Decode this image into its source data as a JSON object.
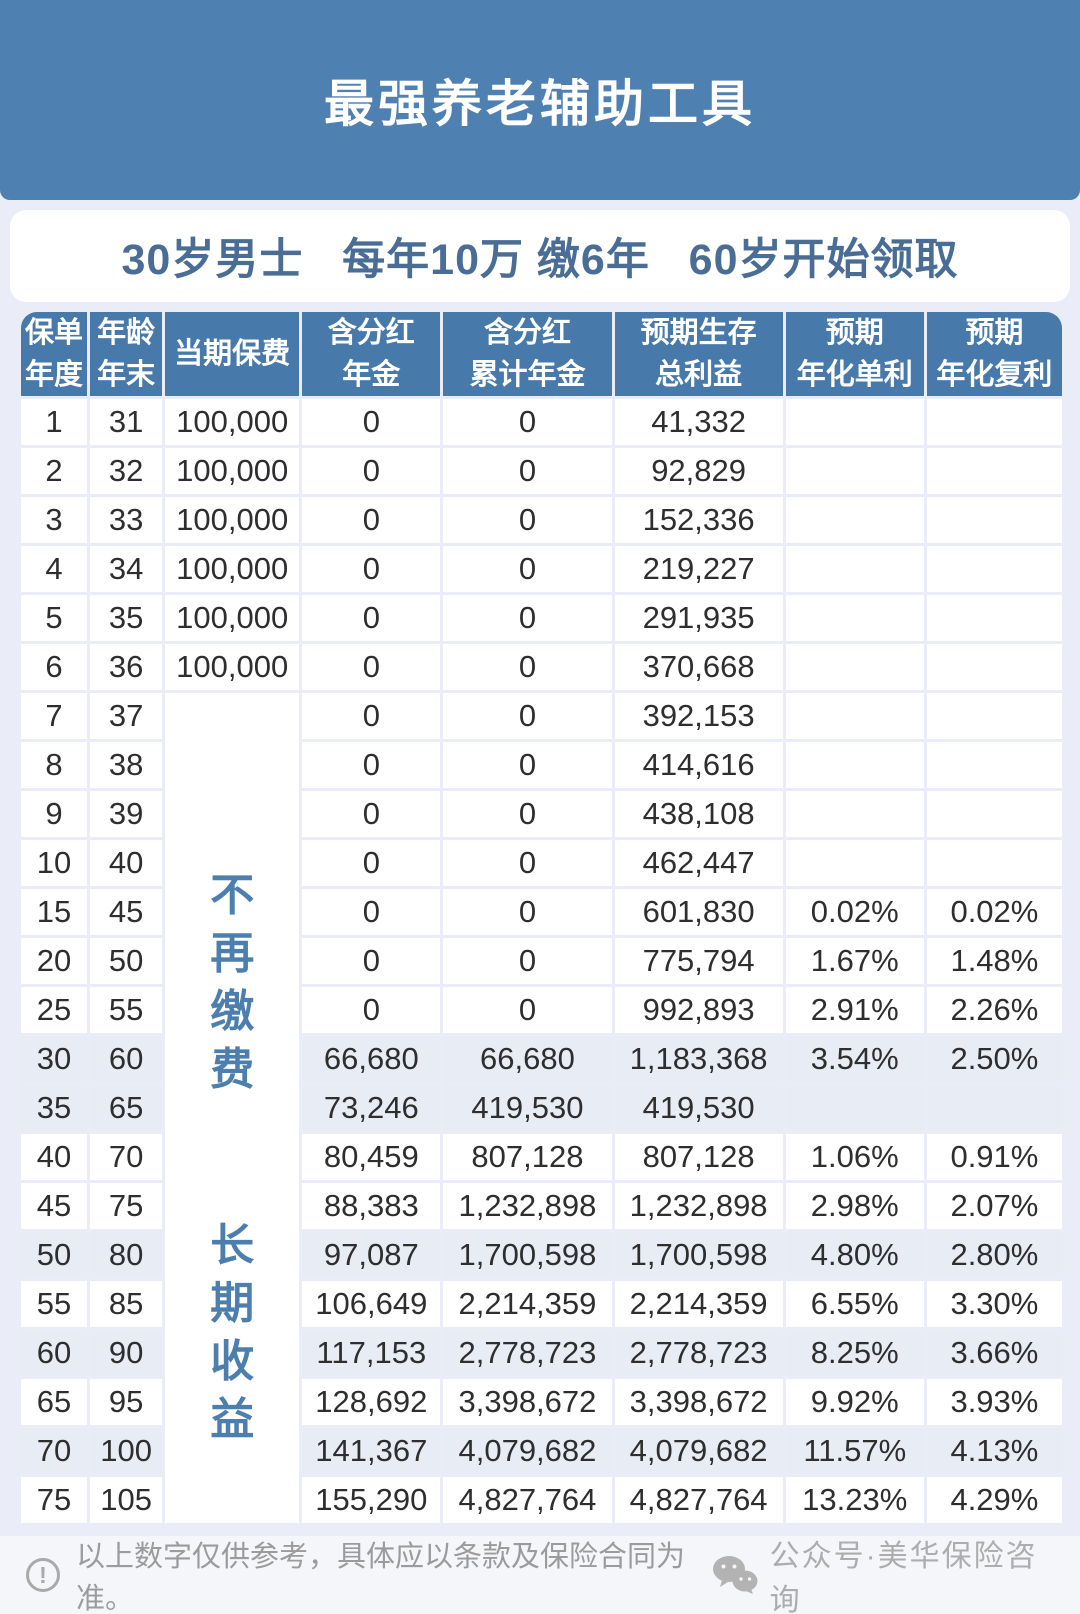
{
  "banner": {
    "title": "最强养老辅助工具"
  },
  "subtitle": {
    "text": "30岁男士   每年10万 缴6年   60岁开始领取"
  },
  "table": {
    "headers": [
      {
        "lines": [
          "保单",
          "年度"
        ]
      },
      {
        "lines": [
          "年龄",
          "年末"
        ]
      },
      {
        "lines": [
          "当期保费"
        ]
      },
      {
        "lines": [
          "含分红",
          "年金"
        ]
      },
      {
        "lines": [
          "含分红",
          "累计年金"
        ]
      },
      {
        "lines": [
          "预期生存",
          "总利益"
        ]
      },
      {
        "lines": [
          "预期",
          "年化单利"
        ]
      },
      {
        "lines": [
          "预期",
          "年化复利"
        ]
      }
    ],
    "merged_premium": {
      "start_index": 6,
      "row_span": 17,
      "labels": [
        "不再缴费",
        "长期收益"
      ]
    },
    "rows": [
      {
        "year": "1",
        "age": "31",
        "premium": "100,000",
        "annuity": "0",
        "cumulative": "0",
        "total": "41,332",
        "simple": "",
        "compound": "",
        "shaded": false
      },
      {
        "year": "2",
        "age": "32",
        "premium": "100,000",
        "annuity": "0",
        "cumulative": "0",
        "total": "92,829",
        "simple": "",
        "compound": "",
        "shaded": false
      },
      {
        "year": "3",
        "age": "33",
        "premium": "100,000",
        "annuity": "0",
        "cumulative": "0",
        "total": "152,336",
        "simple": "",
        "compound": "",
        "shaded": false
      },
      {
        "year": "4",
        "age": "34",
        "premium": "100,000",
        "annuity": "0",
        "cumulative": "0",
        "total": "219,227",
        "simple": "",
        "compound": "",
        "shaded": false
      },
      {
        "year": "5",
        "age": "35",
        "premium": "100,000",
        "annuity": "0",
        "cumulative": "0",
        "total": "291,935",
        "simple": "",
        "compound": "",
        "shaded": false
      },
      {
        "year": "6",
        "age": "36",
        "premium": "100,000",
        "annuity": "0",
        "cumulative": "0",
        "total": "370,668",
        "simple": "",
        "compound": "",
        "shaded": false
      },
      {
        "year": "7",
        "age": "37",
        "premium": null,
        "annuity": "0",
        "cumulative": "0",
        "total": "392,153",
        "simple": "",
        "compound": "",
        "shaded": false
      },
      {
        "year": "8",
        "age": "38",
        "premium": null,
        "annuity": "0",
        "cumulative": "0",
        "total": "414,616",
        "simple": "",
        "compound": "",
        "shaded": false
      },
      {
        "year": "9",
        "age": "39",
        "premium": null,
        "annuity": "0",
        "cumulative": "0",
        "total": "438,108",
        "simple": "",
        "compound": "",
        "shaded": false
      },
      {
        "year": "10",
        "age": "40",
        "premium": null,
        "annuity": "0",
        "cumulative": "0",
        "total": "462,447",
        "simple": "",
        "compound": "",
        "shaded": false
      },
      {
        "year": "15",
        "age": "45",
        "premium": null,
        "annuity": "0",
        "cumulative": "0",
        "total": "601,830",
        "simple": "0.02%",
        "compound": "0.02%",
        "shaded": false
      },
      {
        "year": "20",
        "age": "50",
        "premium": null,
        "annuity": "0",
        "cumulative": "0",
        "total": "775,794",
        "simple": "1.67%",
        "compound": "1.48%",
        "shaded": false
      },
      {
        "year": "25",
        "age": "55",
        "premium": null,
        "annuity": "0",
        "cumulative": "0",
        "total": "992,893",
        "simple": "2.91%",
        "compound": "2.26%",
        "shaded": false
      },
      {
        "year": "30",
        "age": "60",
        "premium": null,
        "annuity": "66,680",
        "cumulative": "66,680",
        "total": "1,183,368",
        "simple": "3.54%",
        "compound": "2.50%",
        "shaded": true
      },
      {
        "year": "35",
        "age": "65",
        "premium": null,
        "annuity": "73,246",
        "cumulative": "419,530",
        "total": "419,530",
        "simple": "",
        "compound": "",
        "shaded": true
      },
      {
        "year": "40",
        "age": "70",
        "premium": null,
        "annuity": "80,459",
        "cumulative": "807,128",
        "total": "807,128",
        "simple": "1.06%",
        "compound": "0.91%",
        "shaded": false
      },
      {
        "year": "45",
        "age": "75",
        "premium": null,
        "annuity": "88,383",
        "cumulative": "1,232,898",
        "total": "1,232,898",
        "simple": "2.98%",
        "compound": "2.07%",
        "shaded": false
      },
      {
        "year": "50",
        "age": "80",
        "premium": null,
        "annuity": "97,087",
        "cumulative": "1,700,598",
        "total": "1,700,598",
        "simple": "4.80%",
        "compound": "2.80%",
        "shaded": true
      },
      {
        "year": "55",
        "age": "85",
        "premium": null,
        "annuity": "106,649",
        "cumulative": "2,214,359",
        "total": "2,214,359",
        "simple": "6.55%",
        "compound": "3.30%",
        "shaded": false
      },
      {
        "year": "60",
        "age": "90",
        "premium": null,
        "annuity": "117,153",
        "cumulative": "2,778,723",
        "total": "2,778,723",
        "simple": "8.25%",
        "compound": "3.66%",
        "shaded": true
      },
      {
        "year": "65",
        "age": "95",
        "premium": null,
        "annuity": "128,692",
        "cumulative": "3,398,672",
        "total": "3,398,672",
        "simple": "9.92%",
        "compound": "3.93%",
        "shaded": false
      },
      {
        "year": "70",
        "age": "100",
        "premium": null,
        "annuity": "141,367",
        "cumulative": "4,079,682",
        "total": "4,079,682",
        "simple": "11.57%",
        "compound": "4.13%",
        "shaded": true
      },
      {
        "year": "75",
        "age": "105",
        "premium": null,
        "annuity": "155,290",
        "cumulative": "4,827,764",
        "total": "4,827,764",
        "simple": "13.23%",
        "compound": "4.29%",
        "shaded": false
      }
    ]
  },
  "footer": {
    "disclaimer": "以上数字仅供参考，具体应以条款及保险合同为准。",
    "account": "公众号·美华保险咨询",
    "left_icon": "exclamation-circle-icon",
    "right_icon": "wechat-icon"
  },
  "colors": {
    "banner_blue": "#4e80b1",
    "header_blue": "#4779aa",
    "subtitle_blue": "#4a6d96",
    "vertical_label_blue": "#4d7fae",
    "shaded_row": "#e8ecf5",
    "page_background": "#eaedf8",
    "footer_background": "#f5f6fa",
    "body_text": "#2e2e2e",
    "footer_text": "#9b9b9b"
  }
}
